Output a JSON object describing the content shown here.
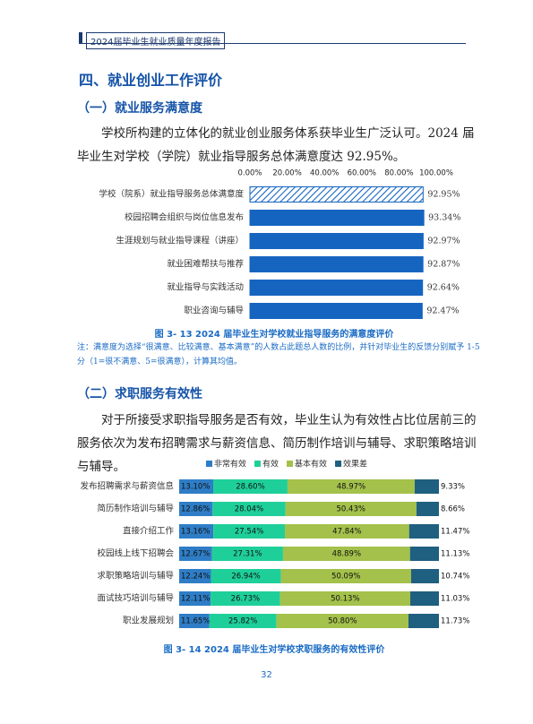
{
  "header": {
    "title": "2024届毕业生就业质量年度报告"
  },
  "section": {
    "title": "四、就业创业工作评价"
  },
  "subsections": [
    {
      "title": "（一）就业服务满意度",
      "paragraph": "学校所构建的立体化的就业创业服务体系获毕业生广泛认可。2024 届毕业生对学校（学院）就业指导服务总体满意度达 92.95%。",
      "caption": "图 3- 13  2024 届毕业生对学校就业指导服务的满意度评价",
      "note": "注：满意度为选择“很满意、比较满意、基本满意”的人数占此题总人数的比例，并针对毕业生的反馈分别赋予 1-5 分（1=很不满意、5=很满意），计算其均值。"
    },
    {
      "title": "（二）求职服务有效性",
      "paragraph": "对于所接受求职指导服务是否有效，毕业生认为有效性占比位居前三的服务依次为发布招聘需求与薪资信息、简历制作培训与辅导、求职策略培训与辅导。",
      "caption": "图 3- 14  2024 届毕业生对学校求职服务的有效性评价"
    }
  ],
  "page_number": "32",
  "chart_data": [
    {
      "type": "bar",
      "orientation": "horizontal",
      "categories": [
        "学校（院系）就业指导服务总体满意度",
        "校园招聘会组织与岗位信息发布",
        "生涯规划与就业指导课程（讲座）",
        "就业困难帮扶与推荐",
        "就业指导与实践活动",
        "职业咨询与辅导"
      ],
      "values": [
        92.95,
        93.34,
        92.97,
        92.87,
        92.64,
        92.47
      ],
      "value_labels": [
        "92.95%",
        "93.34%",
        "92.97%",
        "92.87%",
        "92.64%",
        "92.47%"
      ],
      "color": "#1565c0",
      "hatched_categories": [
        0
      ],
      "xlim": [
        0,
        100
      ],
      "xticks": [
        {
          "value": 0,
          "label": "0.00%"
        },
        {
          "value": 20,
          "label": "20.00%"
        },
        {
          "value": 40,
          "label": "40.00%"
        },
        {
          "value": 60,
          "label": "60.00%"
        },
        {
          "value": 80,
          "label": "80.00%"
        },
        {
          "value": 100,
          "label": "100.00%"
        }
      ],
      "grid": false
    },
    {
      "type": "stacked_bar",
      "orientation": "horizontal",
      "categories": [
        "发布招聘需求与薪资信息",
        "简历制作培训与辅导",
        "直接介绍工作",
        "校园线上线下招聘会",
        "求职策略培训与辅导",
        "面试技巧培训与辅导",
        "职业发展规划"
      ],
      "series": [
        {
          "name": "非常有效",
          "color": "#2e7dc6",
          "values": [
            13.1,
            12.86,
            13.16,
            12.67,
            12.24,
            12.11,
            11.65
          ],
          "value_labels": [
            "13.10%",
            "12.86%",
            "13.16%",
            "12.67%",
            "12.24%",
            "12.11%",
            "11.65%"
          ]
        },
        {
          "name": "有效",
          "color": "#1fcf9a",
          "values": [
            28.6,
            28.04,
            27.54,
            27.31,
            26.94,
            26.73,
            25.82
          ],
          "value_labels": [
            "28.60%",
            "28.04%",
            "27.54%",
            "27.31%",
            "26.94%",
            "26.73%",
            "25.82%"
          ]
        },
        {
          "name": "基本有效",
          "color": "#a4c14b",
          "values": [
            48.97,
            50.43,
            47.84,
            48.89,
            50.09,
            50.13,
            50.8
          ],
          "value_labels": [
            "48.97%",
            "50.43%",
            "47.84%",
            "48.89%",
            "50.09%",
            "50.13%",
            "50.80%"
          ]
        },
        {
          "name": "效果差",
          "color": "#1f5f7f",
          "values": [
            9.33,
            8.66,
            11.47,
            11.13,
            10.74,
            11.03,
            11.73
          ],
          "value_labels": [
            "9.33%",
            "8.66%",
            "11.47%",
            "11.13%",
            "10.74%",
            "11.03%",
            "11.73%"
          ]
        }
      ],
      "xlim": [
        0,
        100
      ],
      "legend": "top"
    }
  ]
}
